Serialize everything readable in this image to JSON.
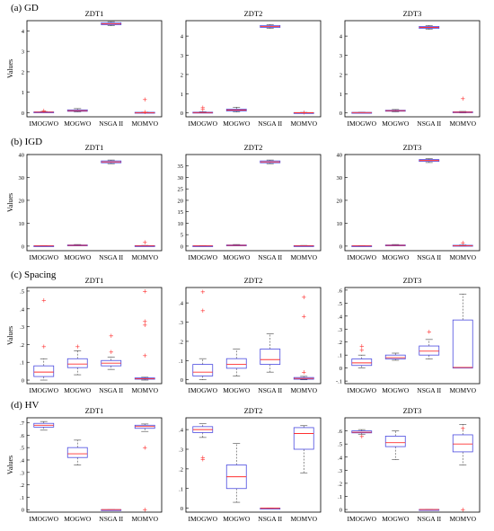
{
  "figure": {
    "rows": [
      {
        "label": "(a) GD",
        "ylabel": "Values"
      },
      {
        "label": "(b) IGD",
        "ylabel": "Values"
      },
      {
        "label": "(c) Spacing",
        "ylabel": "Values"
      },
      {
        "label": "(d) HV",
        "ylabel": "Values"
      }
    ],
    "colors": {
      "box": "#4a4ae0",
      "median": "#ff3030",
      "outlier": "#ff3030",
      "whisker": "#444444"
    }
  },
  "chart_data": [
    {
      "type": "box",
      "row_label": "(a) GD",
      "title": "ZDT1",
      "ylabel": "Values",
      "categories": [
        "IMOGWO",
        "MOGWO",
        "NSGA II",
        "MOMVO"
      ],
      "ylim": [
        -0.2,
        4.5
      ],
      "yticks": [
        0,
        1,
        2,
        3,
        4
      ],
      "boxes": [
        {
          "min": 0.01,
          "q1": 0.02,
          "median": 0.03,
          "q3": 0.04,
          "max": 0.06,
          "outliers": [
            0.1
          ]
        },
        {
          "min": 0.04,
          "q1": 0.07,
          "median": 0.1,
          "q3": 0.14,
          "max": 0.2,
          "outliers": []
        },
        {
          "min": 4.25,
          "q1": 4.3,
          "median": 4.35,
          "q3": 4.4,
          "max": 4.45,
          "outliers": []
        },
        {
          "min": 0.0,
          "q1": 0.0,
          "median": 0.0,
          "q3": 0.02,
          "max": 0.03,
          "outliers": [
            0.65,
            0.05
          ]
        }
      ]
    },
    {
      "type": "box",
      "row_label": "(a) GD",
      "title": "ZDT2",
      "ylabel": "",
      "categories": [
        "IMOGWO",
        "MOGWO",
        "NSGA II",
        "MOMVO"
      ],
      "ylim": [
        -0.2,
        4.8
      ],
      "yticks": [
        0,
        1,
        2,
        3,
        4
      ],
      "boxes": [
        {
          "min": 0.0,
          "q1": 0.01,
          "median": 0.02,
          "q3": 0.04,
          "max": 0.06,
          "outliers": [
            0.2,
            0.28
          ]
        },
        {
          "min": 0.05,
          "q1": 0.1,
          "median": 0.15,
          "q3": 0.2,
          "max": 0.3,
          "outliers": []
        },
        {
          "min": 4.4,
          "q1": 4.45,
          "median": 4.5,
          "q3": 4.55,
          "max": 4.6,
          "outliers": []
        },
        {
          "min": 0.0,
          "q1": 0.0,
          "median": 0.01,
          "q3": 0.02,
          "max": 0.03,
          "outliers": [
            0.04
          ]
        }
      ]
    },
    {
      "type": "box",
      "row_label": "(a) GD",
      "title": "ZDT3",
      "ylabel": "",
      "categories": [
        "IMOGWO",
        "MOGWO",
        "NSGA II",
        "MOMVO"
      ],
      "ylim": [
        -0.2,
        4.8
      ],
      "yticks": [
        0,
        1,
        2,
        3,
        4
      ],
      "boxes": [
        {
          "min": 0.0,
          "q1": 0.01,
          "median": 0.02,
          "q3": 0.03,
          "max": 0.04,
          "outliers": []
        },
        {
          "min": 0.06,
          "q1": 0.09,
          "median": 0.12,
          "q3": 0.14,
          "max": 0.18,
          "outliers": []
        },
        {
          "min": 4.35,
          "q1": 4.4,
          "median": 4.45,
          "q3": 4.5,
          "max": 4.55,
          "outliers": []
        },
        {
          "min": 0.0,
          "q1": 0.02,
          "median": 0.04,
          "q3": 0.06,
          "max": 0.08,
          "outliers": [
            0.75
          ]
        }
      ]
    },
    {
      "type": "box",
      "row_label": "(b) IGD",
      "title": "ZDT1",
      "ylabel": "Values",
      "categories": [
        "IMOGWO",
        "MOGWO",
        "NSGA II",
        "MOMVO"
      ],
      "ylim": [
        -2,
        40
      ],
      "yticks": [
        0,
        10,
        20,
        30,
        40
      ],
      "boxes": [
        {
          "min": 0.0,
          "q1": 0.05,
          "median": 0.1,
          "q3": 0.15,
          "max": 0.2,
          "outliers": []
        },
        {
          "min": 0.1,
          "q1": 0.2,
          "median": 0.35,
          "q3": 0.5,
          "max": 0.7,
          "outliers": []
        },
        {
          "min": 36.0,
          "q1": 36.4,
          "median": 36.8,
          "q3": 37.2,
          "max": 37.6,
          "outliers": []
        },
        {
          "min": 0.0,
          "q1": 0.05,
          "median": 0.1,
          "q3": 0.2,
          "max": 0.3,
          "outliers": [
            1.8
          ]
        }
      ]
    },
    {
      "type": "box",
      "row_label": "(b) IGD",
      "title": "ZDT2",
      "ylabel": "",
      "categories": [
        "IMOGWO",
        "MOGWO",
        "NSGA II",
        "MOMVO"
      ],
      "ylim": [
        -2,
        40
      ],
      "yticks": [
        0,
        5,
        10,
        15,
        20,
        25,
        30,
        35
      ],
      "boxes": [
        {
          "min": 0.0,
          "q1": 0.05,
          "median": 0.1,
          "q3": 0.15,
          "max": 0.2,
          "outliers": []
        },
        {
          "min": 0.1,
          "q1": 0.2,
          "median": 0.35,
          "q3": 0.5,
          "max": 0.7,
          "outliers": []
        },
        {
          "min": 36.0,
          "q1": 36.4,
          "median": 36.8,
          "q3": 37.2,
          "max": 37.6,
          "outliers": []
        },
        {
          "min": 0.0,
          "q1": 0.05,
          "median": 0.1,
          "q3": 0.2,
          "max": 0.3,
          "outliers": []
        }
      ]
    },
    {
      "type": "box",
      "row_label": "(b) IGD",
      "title": "ZDT3",
      "ylabel": "",
      "categories": [
        "IMOGWO",
        "MOGWO",
        "NSGA II",
        "MOMVO"
      ],
      "ylim": [
        -2,
        40
      ],
      "yticks": [
        0,
        10,
        20,
        30,
        40
      ],
      "boxes": [
        {
          "min": 0.0,
          "q1": 0.05,
          "median": 0.1,
          "q3": 0.15,
          "max": 0.2,
          "outliers": []
        },
        {
          "min": 0.1,
          "q1": 0.2,
          "median": 0.35,
          "q3": 0.5,
          "max": 0.7,
          "outliers": []
        },
        {
          "min": 36.5,
          "q1": 37.0,
          "median": 37.4,
          "q3": 37.8,
          "max": 38.2,
          "outliers": []
        },
        {
          "min": 0.0,
          "q1": 0.1,
          "median": 0.2,
          "q3": 0.35,
          "max": 0.5,
          "outliers": [
            1.5
          ]
        }
      ]
    },
    {
      "type": "box",
      "row_label": "(c) Spacing",
      "title": "ZDT1",
      "ylabel": "Values",
      "categories": [
        "IMOGWO",
        "MOGWO",
        "NSGA II",
        "MOMVO"
      ],
      "ylim": [
        -0.02,
        0.52
      ],
      "yticks": [
        0,
        0.1,
        0.2,
        0.3,
        0.4,
        0.5
      ],
      "boxes": [
        {
          "min": 0.0,
          "q1": 0.02,
          "median": 0.045,
          "q3": 0.08,
          "max": 0.12,
          "outliers": [
            0.19,
            0.45
          ]
        },
        {
          "min": 0.03,
          "q1": 0.07,
          "median": 0.09,
          "q3": 0.12,
          "max": 0.165,
          "outliers": [
            0.19
          ]
        },
        {
          "min": 0.06,
          "q1": 0.08,
          "median": 0.095,
          "q3": 0.11,
          "max": 0.13,
          "outliers": [
            0.16,
            0.25
          ]
        },
        {
          "min": 0.0,
          "q1": 0.005,
          "median": 0.008,
          "q3": 0.012,
          "max": 0.016,
          "outliers": [
            0.14,
            0.31,
            0.33,
            0.5
          ]
        }
      ]
    },
    {
      "type": "box",
      "row_label": "(c) Spacing",
      "title": "ZDT2",
      "ylabel": "",
      "categories": [
        "IMOGWO",
        "MOGWO",
        "NSGA II",
        "MOMVO"
      ],
      "ylim": [
        -0.02,
        0.48
      ],
      "yticks": [
        0,
        0.1,
        0.2,
        0.3,
        0.4
      ],
      "boxes": [
        {
          "min": 0.0,
          "q1": 0.02,
          "median": 0.04,
          "q3": 0.08,
          "max": 0.11,
          "outliers": [
            0.36,
            0.46
          ]
        },
        {
          "min": 0.02,
          "q1": 0.06,
          "median": 0.08,
          "q3": 0.11,
          "max": 0.16,
          "outliers": []
        },
        {
          "min": 0.04,
          "q1": 0.08,
          "median": 0.105,
          "q3": 0.16,
          "max": 0.24,
          "outliers": []
        },
        {
          "min": 0.0,
          "q1": 0.003,
          "median": 0.007,
          "q3": 0.012,
          "max": 0.018,
          "outliers": [
            0.04,
            0.33,
            0.43
          ]
        }
      ]
    },
    {
      "type": "box",
      "row_label": "(c) Spacing",
      "title": "ZDT3",
      "ylabel": "",
      "categories": [
        "IMOGWO",
        "MOGWO",
        "NSGA II",
        "MOMVO"
      ],
      "ylim": [
        -0.12,
        0.62
      ],
      "yticks": [
        -0.1,
        0,
        0.1,
        0.2,
        0.3,
        0.4,
        0.5,
        0.6
      ],
      "boxes": [
        {
          "min": 0.0,
          "q1": 0.02,
          "median": 0.04,
          "q3": 0.07,
          "max": 0.1,
          "outliers": [
            0.14,
            0.17
          ]
        },
        {
          "min": 0.06,
          "q1": 0.07,
          "median": 0.08,
          "q3": 0.1,
          "max": 0.115,
          "outliers": []
        },
        {
          "min": 0.07,
          "q1": 0.1,
          "median": 0.13,
          "q3": 0.17,
          "max": 0.22,
          "outliers": [
            0.28
          ]
        },
        {
          "min": 0.0,
          "q1": 0.0,
          "median": 0.005,
          "q3": 0.37,
          "max": 0.57,
          "outliers": []
        }
      ]
    },
    {
      "type": "box",
      "row_label": "(d) HV",
      "title": "ZDT1",
      "ylabel": "Values",
      "categories": [
        "IMOGWO",
        "MOGWO",
        "NSGA II",
        "MOMVO"
      ],
      "ylim": [
        -0.02,
        0.74
      ],
      "yticks": [
        0,
        0.1,
        0.2,
        0.3,
        0.4,
        0.5,
        0.6,
        0.7
      ],
      "boxes": [
        {
          "min": 0.64,
          "q1": 0.665,
          "median": 0.68,
          "q3": 0.695,
          "max": 0.71,
          "outliers": []
        },
        {
          "min": 0.36,
          "q1": 0.42,
          "median": 0.45,
          "q3": 0.5,
          "max": 0.56,
          "outliers": []
        },
        {
          "min": 0.0,
          "q1": 0.0,
          "median": 0.0,
          "q3": 0.0,
          "max": 0.0,
          "outliers": []
        },
        {
          "min": 0.63,
          "q1": 0.655,
          "median": 0.67,
          "q3": 0.68,
          "max": 0.69,
          "outliers": [
            0.0,
            0.5
          ]
        }
      ]
    },
    {
      "type": "box",
      "row_label": "(d) HV",
      "title": "ZDT2",
      "ylabel": "",
      "categories": [
        "IMOGWO",
        "MOGWO",
        "NSGA II",
        "MOMVO"
      ],
      "ylim": [
        -0.02,
        0.46
      ],
      "yticks": [
        0,
        0.1,
        0.2,
        0.3,
        0.4
      ],
      "boxes": [
        {
          "min": 0.36,
          "q1": 0.385,
          "median": 0.4,
          "q3": 0.415,
          "max": 0.43,
          "outliers": [
            0.25,
            0.26
          ]
        },
        {
          "min": 0.03,
          "q1": 0.1,
          "median": 0.16,
          "q3": 0.22,
          "max": 0.33,
          "outliers": []
        },
        {
          "min": 0.0,
          "q1": 0.0,
          "median": 0.0,
          "q3": 0.0,
          "max": 0.0,
          "outliers": []
        },
        {
          "min": 0.18,
          "q1": 0.3,
          "median": 0.38,
          "q3": 0.41,
          "max": 0.42,
          "outliers": []
        }
      ]
    },
    {
      "type": "box",
      "row_label": "(d) HV",
      "title": "ZDT3",
      "ylabel": "",
      "categories": [
        "IMOGWO",
        "MOGWO",
        "NSGA II",
        "MOMVO"
      ],
      "ylim": [
        -0.02,
        0.7
      ],
      "yticks": [
        0,
        0.1,
        0.2,
        0.3,
        0.4,
        0.5,
        0.6
      ],
      "boxes": [
        {
          "min": 0.575,
          "q1": 0.585,
          "median": 0.59,
          "q3": 0.6,
          "max": 0.61,
          "outliers": [
            0.56
          ]
        },
        {
          "min": 0.38,
          "q1": 0.48,
          "median": 0.51,
          "q3": 0.56,
          "max": 0.6,
          "outliers": []
        },
        {
          "min": 0.0,
          "q1": 0.0,
          "median": 0.0,
          "q3": 0.0,
          "max": 0.0,
          "outliers": []
        },
        {
          "min": 0.34,
          "q1": 0.44,
          "median": 0.5,
          "q3": 0.57,
          "max": 0.65,
          "outliers": [
            0.0,
            0.62
          ]
        }
      ]
    }
  ]
}
